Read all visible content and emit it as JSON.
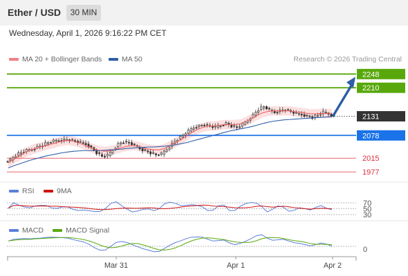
{
  "header": {
    "title": "Ether / USD",
    "timeframe": "30 MIN"
  },
  "datetime": "Wednesday, April 1, 2026 9:16:22 PM CET",
  "legend": {
    "ma20_label": "MA 20 + Bollinger Bands",
    "ma50_label": "MA 50",
    "rsi_label": "RSI",
    "rsi_ma_label": "9MA",
    "macd_label": "MACD",
    "macd_signal_label": "MACD Signal"
  },
  "credit": "Research © 2026 Trading Central",
  "colors": {
    "resistance": "#58a80c",
    "support": "#1a73e8",
    "bearish_level": "#e03040",
    "current_price_bg": "#333333",
    "arrow": "#2e5ea8",
    "ma20": "#f06060",
    "ma50": "#2e5ea8",
    "band_fill": "#fbd5d5",
    "rsi": "#5a7fd8",
    "rsi_ma": "#d01010",
    "macd": "#5a7fd8",
    "macd_signal": "#58a80c",
    "candle": "#333333"
  },
  "chart_data": {
    "type": "candlestick",
    "symbol": "Ether / USD",
    "interval": "30 MIN",
    "x_ticks": [
      "Mar 31",
      "Apr 1",
      "Apr 2"
    ],
    "price_range": [
      1960,
      2262
    ],
    "levels": [
      {
        "value": 2248,
        "label": "2248",
        "kind": "resistance"
      },
      {
        "value": 2210,
        "label": "2210",
        "kind": "resistance"
      },
      {
        "value": 2131,
        "label": "2131",
        "kind": "current"
      },
      {
        "value": 2078,
        "label": "2078",
        "kind": "support"
      },
      {
        "value": 2015,
        "label": "2015",
        "kind": "support-2"
      },
      {
        "value": 1977,
        "label": "1977",
        "kind": "support-3"
      }
    ],
    "close_series": [
      2010,
      2023,
      2030,
      2036,
      2040,
      2046,
      2051,
      2058,
      2062,
      2064,
      2066,
      2066,
      2062,
      2058,
      2054,
      2044,
      2030,
      2020,
      2022,
      2038,
      2055,
      2060,
      2058,
      2050,
      2042,
      2035,
      2030,
      2024,
      2026,
      2040,
      2055,
      2068,
      2078,
      2090,
      2100,
      2105,
      2108,
      2103,
      2100,
      2106,
      2112,
      2104,
      2100,
      2108,
      2120,
      2134,
      2150,
      2158,
      2148,
      2142,
      2146,
      2150,
      2144,
      2138,
      2136,
      2132,
      2128,
      2134,
      2142,
      2138,
      2131
    ],
    "ma20_series": [
      2002,
      2012,
      2020,
      2030,
      2036,
      2042,
      2046,
      2050,
      2054,
      2058,
      2062,
      2064,
      2062,
      2058,
      2052,
      2046,
      2040,
      2036,
      2034,
      2036,
      2040,
      2044,
      2048,
      2050,
      2048,
      2044,
      2040,
      2038,
      2038,
      2042,
      2050,
      2058,
      2066,
      2076,
      2086,
      2094,
      2100,
      2104,
      2104,
      2106,
      2108,
      2108,
      2108,
      2110,
      2116,
      2124,
      2132,
      2140,
      2144,
      2146,
      2146,
      2146,
      2146,
      2144,
      2142,
      2140,
      2138,
      2138,
      2139,
      2139,
      2138
    ],
    "ma50_series": [
      1988,
      1994,
      1999,
      2004,
      2009,
      2013,
      2017,
      2021,
      2024,
      2027,
      2030,
      2032,
      2034,
      2035,
      2036,
      2036,
      2036,
      2036,
      2037,
      2038,
      2039,
      2040,
      2042,
      2043,
      2044,
      2045,
      2046,
      2046,
      2047,
      2048,
      2050,
      2052,
      2055,
      2058,
      2062,
      2066,
      2070,
      2074,
      2078,
      2082,
      2086,
      2090,
      2093,
      2096,
      2099,
      2102,
      2106,
      2110,
      2114,
      2117,
      2119,
      2121,
      2122,
      2123,
      2124,
      2125,
      2126,
      2127,
      2128,
      2129,
      2130
    ],
    "arrow_target": 2248,
    "rsi_axis": [
      "70",
      "50",
      "30"
    ],
    "macd_axis": [
      "0"
    ]
  }
}
